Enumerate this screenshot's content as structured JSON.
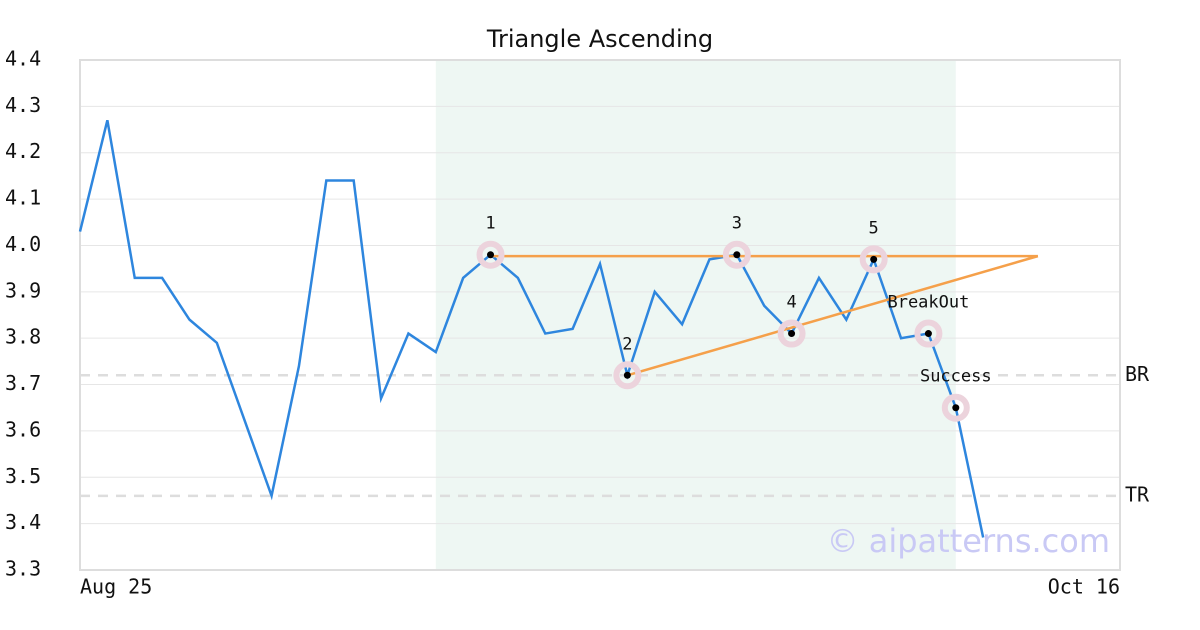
{
  "chart_data": {
    "type": "line",
    "title": "Triangle Ascending",
    "x": [
      0,
      1,
      2,
      3,
      4,
      5,
      6,
      7,
      8,
      9,
      10,
      11,
      12,
      13,
      14,
      15,
      16,
      17,
      18,
      19,
      20,
      21,
      22,
      23,
      24,
      25,
      26,
      27,
      28,
      29,
      30,
      31,
      32,
      33
    ],
    "values": [
      4.03,
      4.27,
      3.93,
      3.93,
      3.84,
      3.79,
      3.625,
      3.46,
      3.74,
      4.14,
      4.14,
      3.67,
      3.81,
      3.77,
      3.93,
      3.98,
      3.93,
      3.81,
      3.82,
      3.96,
      3.72,
      3.9,
      3.83,
      3.97,
      3.98,
      3.87,
      3.81,
      3.93,
      3.84,
      3.97,
      3.8,
      3.81,
      3.65,
      3.37
    ],
    "color": "#2e86de",
    "xlim": [
      0,
      38
    ],
    "xticks": [
      {
        "value": 0,
        "label": "Aug 25"
      },
      {
        "value": 38,
        "label": "Oct 16"
      }
    ],
    "ylim": [
      3.3,
      4.4
    ],
    "yticks": [
      3.3,
      3.4,
      3.5,
      3.6,
      3.7,
      3.8,
      3.9,
      {
        "value": 4,
        "label": "4.0"
      },
      4.1,
      4.2,
      4.3,
      4.4
    ],
    "grid": true,
    "shaded_region": [
      13,
      32
    ],
    "pattern_color": "#f5a04a",
    "pattern_lines": [
      {
        "x": [
          15,
          35
        ],
        "y": [
          3.977,
          3.977
        ]
      },
      {
        "x": [
          20,
          35
        ],
        "y": [
          3.72,
          3.977
        ]
      }
    ],
    "pattern_points": [
      {
        "x": 15,
        "y": 3.98,
        "label": "1"
      },
      {
        "x": 20,
        "y": 3.72,
        "label": "2"
      },
      {
        "x": 24,
        "y": 3.98,
        "label": "3"
      },
      {
        "x": 26,
        "y": 3.81,
        "label": "4"
      },
      {
        "x": 29,
        "y": 3.97,
        "label": "5"
      },
      {
        "x": 31,
        "y": 3.81,
        "label": "BreakOut"
      },
      {
        "x": 32,
        "y": 3.65,
        "label": "Success"
      }
    ],
    "levels": [
      {
        "label": "BR",
        "value": 3.72
      },
      {
        "label": "TR",
        "value": 3.46
      }
    ],
    "watermark": "© aipatterns.com"
  }
}
